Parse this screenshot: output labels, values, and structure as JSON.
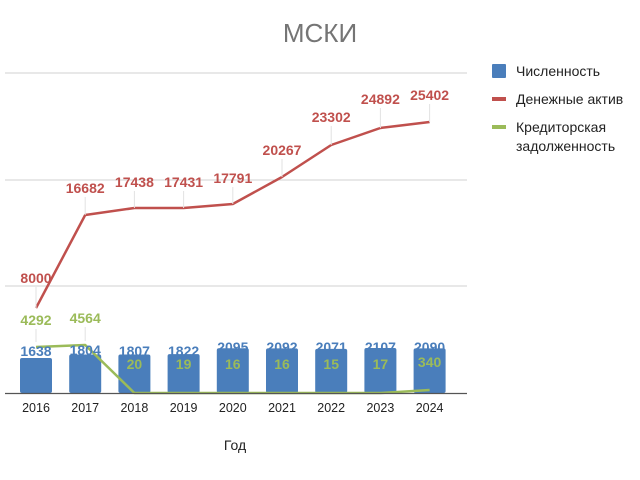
{
  "chart_data": {
    "type": "bar+line",
    "title": "МСКИ",
    "xlabel": "Год",
    "ylabel": "",
    "categories": [
      "2016",
      "2017",
      "2018",
      "2019",
      "2020",
      "2021",
      "2022",
      "2023",
      "2024"
    ],
    "series": [
      {
        "name": "Численность",
        "type": "bar",
        "color": "#4a7ebb",
        "values": [
          1638,
          1804,
          1807,
          1822,
          2095,
          2092,
          2071,
          2107,
          2090
        ]
      },
      {
        "name": "Денежные актив",
        "type": "line",
        "color": "#c0504d",
        "values": [
          8000,
          16682,
          17438,
          17431,
          17791,
          20267,
          23302,
          24892,
          25402
        ]
      },
      {
        "name": "Кредиторская задолженность",
        "type": "line",
        "color": "#9bbb59",
        "values": [
          4292,
          4564,
          20,
          19,
          16,
          16,
          15,
          17,
          340
        ]
      }
    ],
    "grid": true,
    "y_tick_labels_visible": false,
    "legend_position": "right",
    "data_labels": true
  },
  "legend": {
    "items": [
      {
        "label": "Численность",
        "color": "#4a7ebb",
        "shape": "box"
      },
      {
        "label": "Денежные актив",
        "color": "#c0504d",
        "shape": "line"
      },
      {
        "label": "Кредиторская\nзадолженность",
        "color": "#9bbb59",
        "shape": "line"
      }
    ]
  }
}
